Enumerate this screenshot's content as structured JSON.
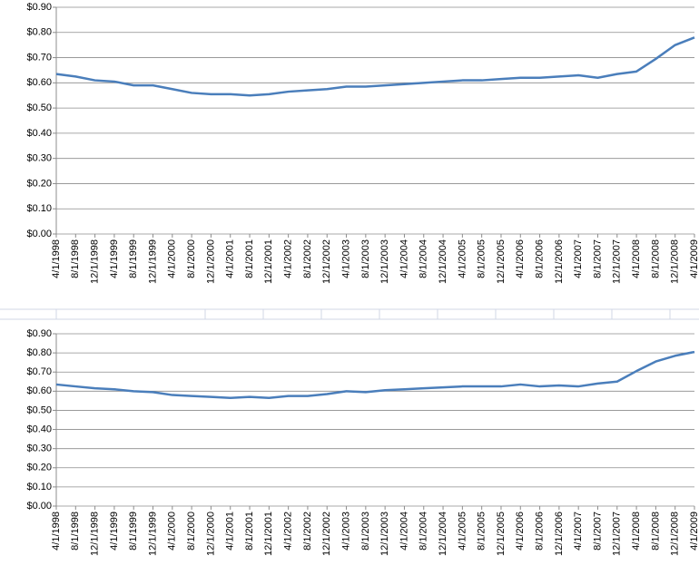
{
  "chart_data": [
    {
      "type": "line",
      "categories": [
        "4/1/1998",
        "8/1/1998",
        "12/1/1998",
        "4/1/1999",
        "8/1/1999",
        "12/1/1999",
        "4/1/2000",
        "8/1/2000",
        "12/1/2000",
        "4/1/2001",
        "8/1/2001",
        "12/1/2001",
        "4/1/2002",
        "8/1/2002",
        "12/1/2002",
        "4/1/2003",
        "8/1/2003",
        "12/1/2003",
        "4/1/2004",
        "8/1/2004",
        "12/1/2004",
        "4/1/2005",
        "8/1/2005",
        "12/1/2005",
        "4/1/2006",
        "8/1/2006",
        "12/1/2006",
        "4/1/2007",
        "8/1/2007",
        "12/1/2007",
        "4/1/2008",
        "8/1/2008",
        "12/1/2008",
        "4/1/2009"
      ],
      "series": [
        {
          "color": "#4a7ebb",
          "values": [
            0.635,
            0.625,
            0.61,
            0.605,
            0.59,
            0.59,
            0.575,
            0.56,
            0.555,
            0.555,
            0.55,
            0.555,
            0.565,
            0.57,
            0.575,
            0.585,
            0.585,
            0.59,
            0.595,
            0.6,
            0.605,
            0.61,
            0.61,
            0.615,
            0.62,
            0.62,
            0.625,
            0.63,
            0.62,
            0.635,
            0.645,
            0.695,
            0.75,
            0.78
          ]
        }
      ],
      "ylim": [
        0,
        0.9
      ],
      "yticks": [
        {
          "value": 0,
          "label": "$0.00"
        },
        {
          "value": 0.1,
          "label": "$0.10"
        },
        {
          "value": 0.2,
          "label": "$0.20"
        },
        {
          "value": 0.3,
          "label": "$0.30"
        },
        {
          "value": 0.4,
          "label": "$0.40"
        },
        {
          "value": 0.5,
          "label": "$0.50"
        },
        {
          "value": 0.6,
          "label": "$0.60"
        },
        {
          "value": 0.7,
          "label": "$0.70"
        },
        {
          "value": 0.8,
          "label": "$0.80"
        },
        {
          "value": 0.9,
          "label": "$0.90"
        }
      ],
      "grid": true
    },
    {
      "type": "line",
      "categories": [
        "4/1/1998",
        "8/1/1998",
        "12/1/1998",
        "4/1/1999",
        "8/1/1999",
        "12/1/1999",
        "4/1/2000",
        "8/1/2000",
        "12/1/2000",
        "4/1/2001",
        "8/1/2001",
        "12/1/2001",
        "4/1/2002",
        "8/1/2002",
        "12/1/2002",
        "4/1/2003",
        "8/1/2003",
        "12/1/2003",
        "4/1/2004",
        "8/1/2004",
        "12/1/2004",
        "4/1/2005",
        "8/1/2005",
        "12/1/2005",
        "4/1/2006",
        "8/1/2006",
        "12/1/2006",
        "4/1/2007",
        "8/1/2007",
        "12/1/2007",
        "4/1/2008",
        "8/1/2008",
        "12/1/2008",
        "4/1/2009"
      ],
      "series": [
        {
          "color": "#4a7ebb",
          "values": [
            0.635,
            0.625,
            0.615,
            0.61,
            0.6,
            0.595,
            0.58,
            0.575,
            0.57,
            0.565,
            0.57,
            0.565,
            0.575,
            0.575,
            0.585,
            0.6,
            0.595,
            0.605,
            0.61,
            0.615,
            0.62,
            0.625,
            0.625,
            0.625,
            0.635,
            0.625,
            0.63,
            0.625,
            0.64,
            0.65,
            0.705,
            0.755,
            0.785,
            0.805
          ]
        }
      ],
      "ylim": [
        0,
        0.9
      ],
      "yticks": [
        {
          "value": 0,
          "label": "$0.00"
        },
        {
          "value": 0.1,
          "label": "$0.10"
        },
        {
          "value": 0.2,
          "label": "$0.20"
        },
        {
          "value": 0.3,
          "label": "$0.30"
        },
        {
          "value": 0.4,
          "label": "$0.40"
        },
        {
          "value": 0.5,
          "label": "$0.50"
        },
        {
          "value": 0.6,
          "label": "$0.60"
        },
        {
          "value": 0.7,
          "label": "$0.70"
        },
        {
          "value": 0.8,
          "label": "$0.80"
        },
        {
          "value": 0.9,
          "label": "$0.90"
        }
      ],
      "grid": true
    }
  ]
}
